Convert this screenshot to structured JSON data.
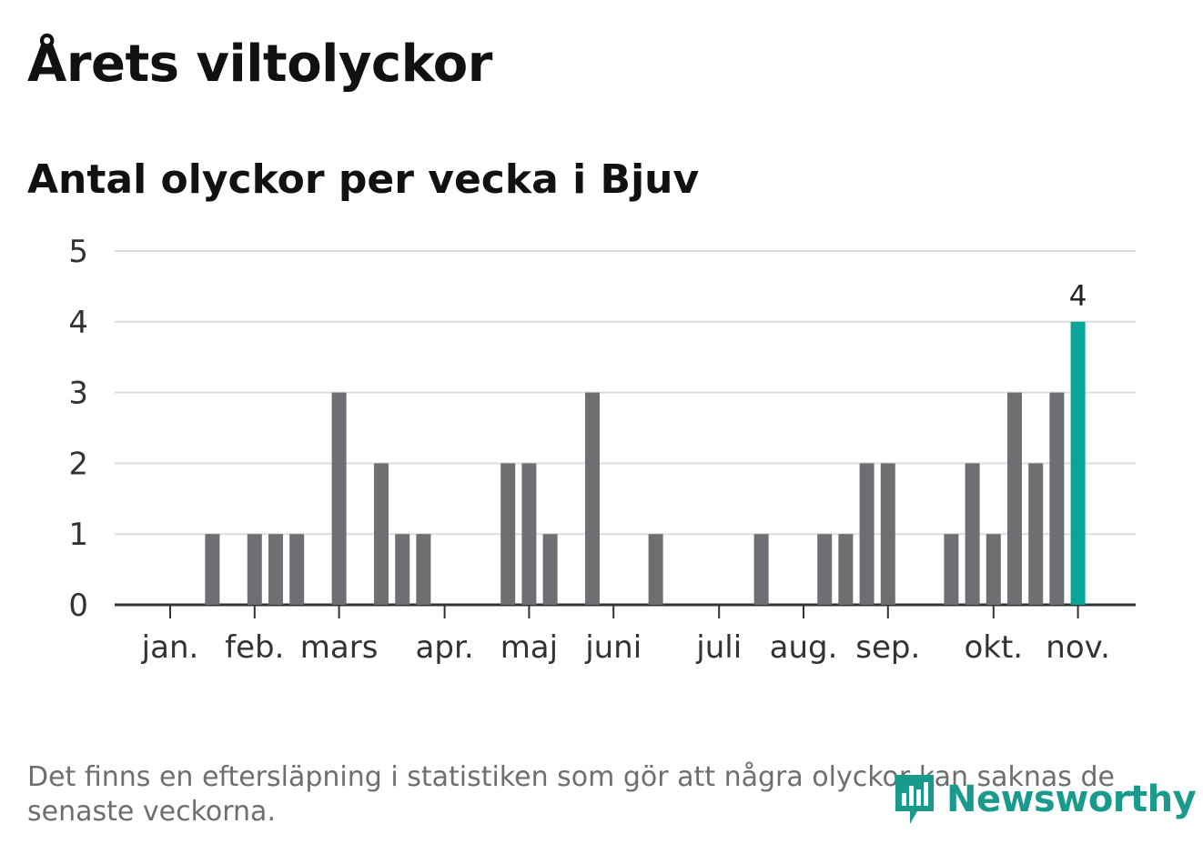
{
  "title": "Årets viltolyckor",
  "subtitle": "Antal olyckor per vecka i Bjuv",
  "footnote": "Det finns en eftersläpning i statistiken som gör att några olyckor kan saknas de senaste veckorna.",
  "brand": {
    "name": "Newsworthy",
    "icon": "newsworthy-logo-icon",
    "color": "#1a9a8d"
  },
  "chart_data": {
    "type": "bar",
    "ylim": [
      0,
      5
    ],
    "y_ticks": [
      0,
      1,
      2,
      3,
      4,
      5
    ],
    "grid": true,
    "bar_color": "#6f6e73",
    "highlight_color": "#0aa59a",
    "month_labels": [
      {
        "label": "jan.",
        "week": 1
      },
      {
        "label": "feb.",
        "week": 5
      },
      {
        "label": "mars",
        "week": 9
      },
      {
        "label": "apr.",
        "week": 14
      },
      {
        "label": "maj",
        "week": 18
      },
      {
        "label": "juni",
        "week": 22
      },
      {
        "label": "juli",
        "week": 27
      },
      {
        "label": "aug.",
        "week": 31
      },
      {
        "label": "sep.",
        "week": 35
      },
      {
        "label": "okt.",
        "week": 40
      },
      {
        "label": "nov.",
        "week": 44
      }
    ],
    "weeks": [
      1,
      2,
      3,
      4,
      5,
      6,
      7,
      8,
      9,
      10,
      11,
      12,
      13,
      14,
      15,
      16,
      17,
      18,
      19,
      20,
      21,
      22,
      23,
      24,
      25,
      26,
      27,
      28,
      29,
      30,
      31,
      32,
      33,
      34,
      35,
      36,
      37,
      38,
      39,
      40,
      41,
      42,
      43,
      44
    ],
    "values": [
      0,
      0,
      1,
      0,
      1,
      1,
      1,
      0,
      3,
      0,
      2,
      1,
      1,
      0,
      0,
      0,
      2,
      2,
      1,
      0,
      3,
      0,
      0,
      1,
      0,
      0,
      0,
      0,
      1,
      0,
      0,
      1,
      1,
      2,
      2,
      0,
      0,
      1,
      2,
      1,
      3,
      2,
      3,
      4
    ],
    "highlight_index": 43,
    "highlight_label": "4"
  }
}
